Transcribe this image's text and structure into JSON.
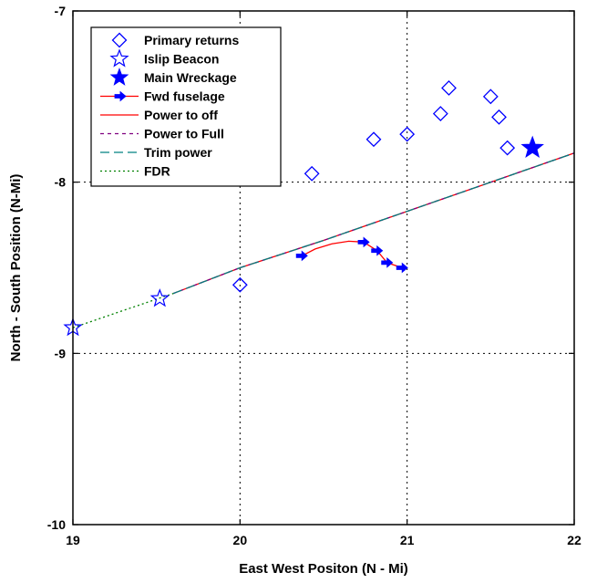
{
  "chart_data": {
    "type": "scatter",
    "title": "",
    "xlabel": "East West Positon (N - Mi)",
    "ylabel": "North - South Position (N-Mi)",
    "xlim": [
      19,
      22
    ],
    "ylim": [
      -10,
      -7
    ],
    "xticks": [
      19,
      20,
      21,
      22
    ],
    "yticks": [
      -7,
      -8,
      -9,
      -10
    ],
    "xtick_labels": [
      "19",
      "20",
      "21",
      "22"
    ],
    "ytick_labels": [
      "-7",
      "-8",
      "-9",
      "-10"
    ],
    "grid": "dotted lines at x=20, x=21 and y=-8, y=-9",
    "legend_position": "top-left",
    "series": [
      {
        "name": "Primary returns",
        "marker": "diamond-open",
        "color": "#0000ff",
        "x": [
          20.0,
          20.43,
          20.8,
          21.0,
          21.2,
          21.25,
          21.5,
          21.55,
          21.6
        ],
        "y": [
          -8.6,
          -7.95,
          -7.75,
          -7.72,
          -7.6,
          -7.45,
          -7.5,
          -7.62,
          -7.8
        ]
      },
      {
        "name": "Islip Beacon",
        "marker": "star-open",
        "color": "#0000ff",
        "x": [
          19.0,
          19.52
        ],
        "y": [
          -8.85,
          -8.68
        ]
      },
      {
        "name": "Main Wreckage",
        "marker": "star-filled",
        "color": "#0000ff",
        "x": [
          21.75
        ],
        "y": [
          -7.8
        ]
      },
      {
        "name": "Fwd fuselage",
        "marker": "arrow-right",
        "color": "#0000ff",
        "x": [
          20.37,
          20.74,
          20.82,
          20.88,
          20.97
        ],
        "y": [
          -8.43,
          -8.35,
          -8.4,
          -8.47,
          -8.5
        ]
      },
      {
        "name": "Power to off",
        "line_style": "solid",
        "color": "#ff0000",
        "x": [
          19.6,
          20.0,
          20.5,
          21.0,
          21.5,
          22.0
        ],
        "y": [
          -8.65,
          -8.5,
          -8.34,
          -8.17,
          -8.0,
          -7.83
        ]
      },
      {
        "name": "Power to Full",
        "line_style": "dashed",
        "color": "#800080",
        "x": [
          19.6,
          20.0,
          20.5,
          21.0,
          21.5,
          22.0
        ],
        "y": [
          -8.65,
          -8.5,
          -8.34,
          -8.17,
          -8.0,
          -7.83
        ]
      },
      {
        "name": "Trim power",
        "line_style": "long-dash",
        "color": "#008080",
        "x": [
          19.6,
          20.0,
          20.5,
          21.0,
          21.5,
          22.0
        ],
        "y": [
          -8.65,
          -8.5,
          -8.34,
          -8.17,
          -8.0,
          -7.83
        ]
      },
      {
        "name": "FDR",
        "line_style": "dotted",
        "color": "#008000",
        "x": [
          19.0,
          19.3,
          19.6
        ],
        "y": [
          -8.85,
          -8.75,
          -8.65
        ]
      }
    ],
    "fwd_fuselage_path": {
      "color": "#ff0000",
      "x": [
        20.37,
        20.45,
        20.55,
        20.65,
        20.74,
        20.82,
        20.88,
        20.97
      ],
      "y": [
        -8.43,
        -8.39,
        -8.36,
        -8.345,
        -8.35,
        -8.4,
        -8.47,
        -8.5
      ]
    }
  }
}
